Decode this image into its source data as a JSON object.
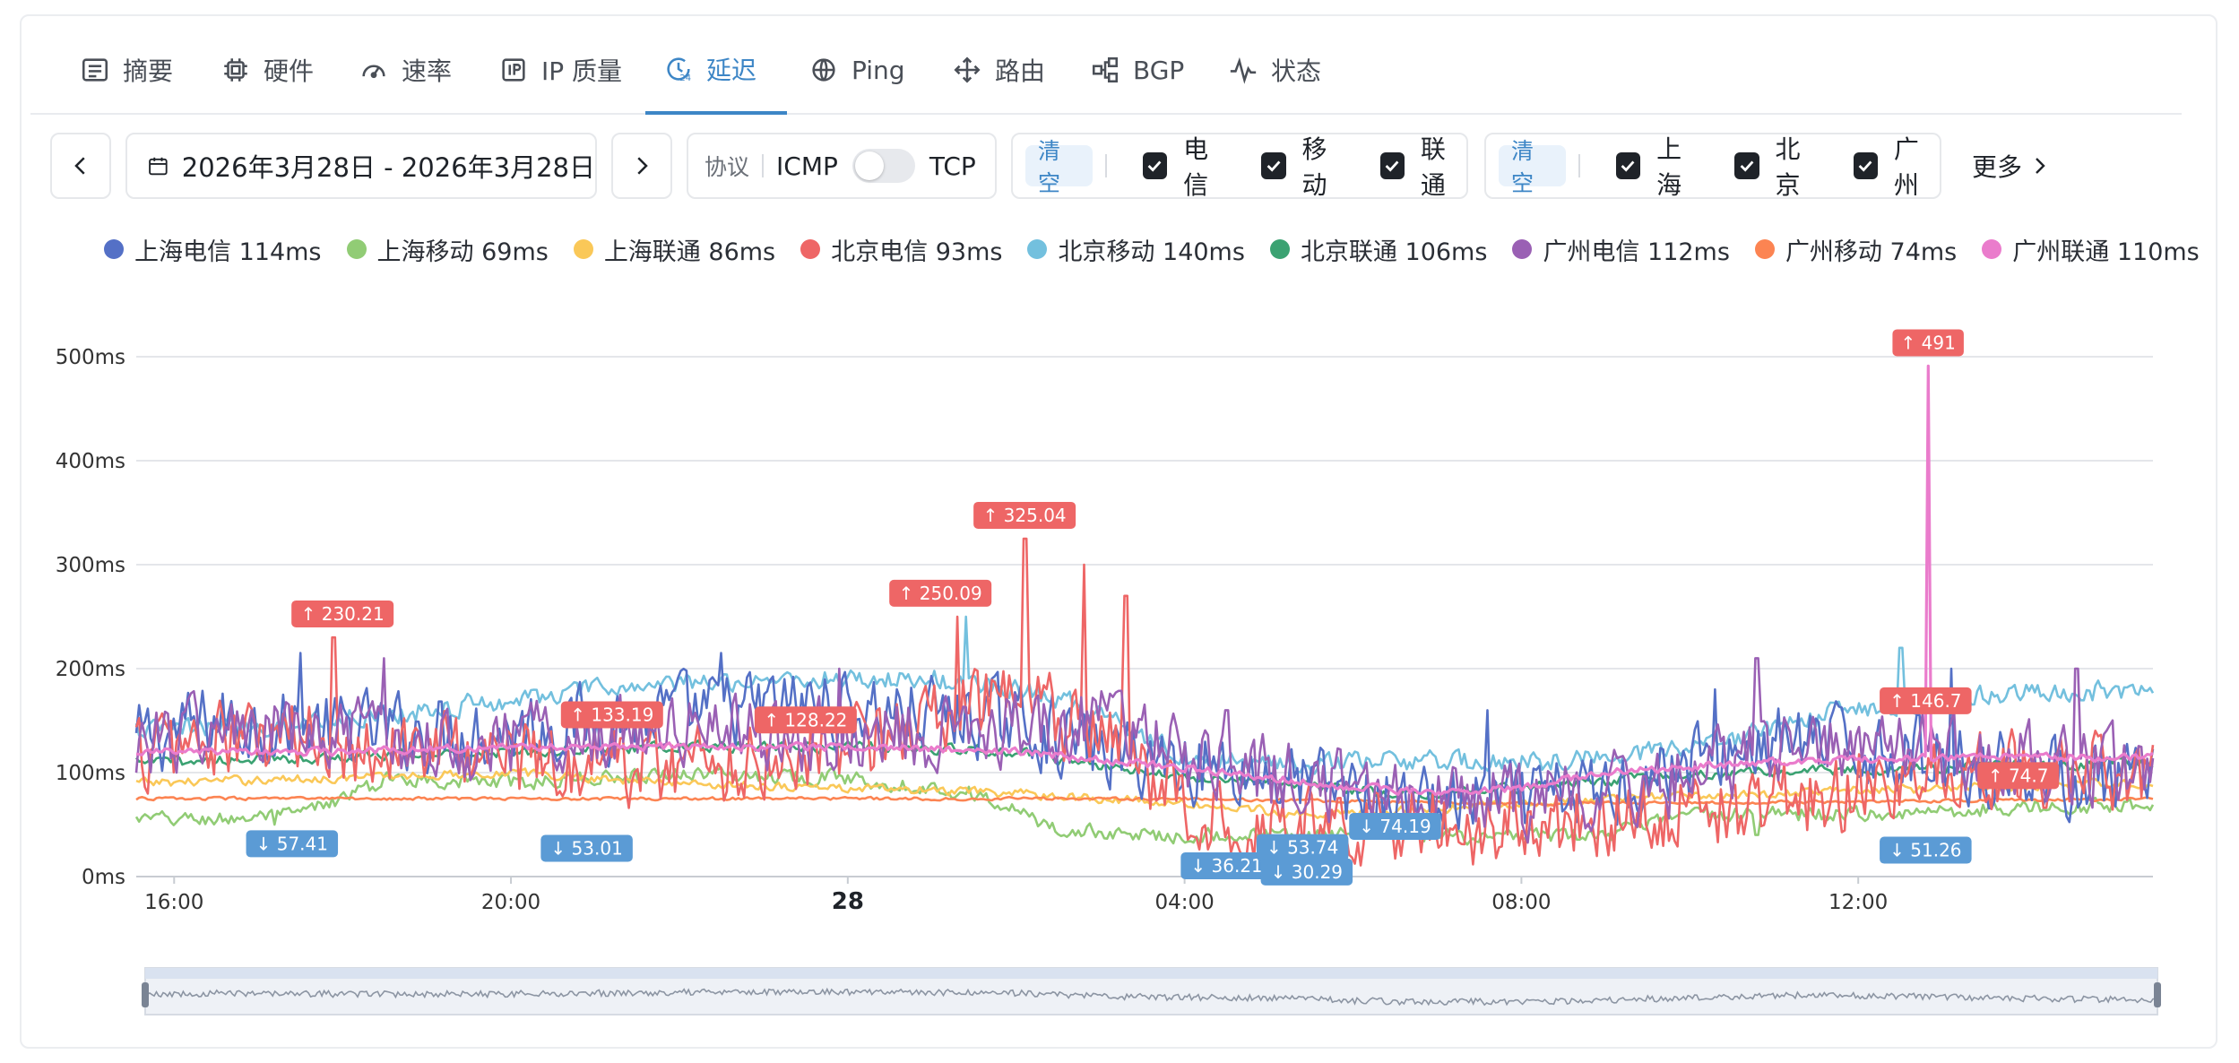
{
  "tabs": [
    {
      "label": "摘要",
      "icon": "summary-icon",
      "active": false
    },
    {
      "label": "硬件",
      "icon": "chip-icon",
      "active": false
    },
    {
      "label": "速率",
      "icon": "gauge-icon",
      "active": false
    },
    {
      "label": "IP 质量",
      "icon": "ip-icon",
      "active": false
    },
    {
      "label": "延迟",
      "icon": "clock-24-icon",
      "active": true
    },
    {
      "label": "Ping",
      "icon": "globe-icon",
      "active": false
    },
    {
      "label": "路由",
      "icon": "route-icon",
      "active": false
    },
    {
      "label": "BGP",
      "icon": "bgp-icon",
      "active": false
    },
    {
      "label": "状态",
      "icon": "pulse-icon",
      "active": false
    }
  ],
  "toolbar": {
    "date_range": "2026年3月28日 - 2026年3月28日",
    "protocol_label": "协议",
    "protocol_left": "ICMP",
    "protocol_right": "TCP",
    "toggle_on": false,
    "isp_clear": "清空",
    "isps": [
      {
        "label": "电信",
        "checked": true
      },
      {
        "label": "移动",
        "checked": true
      },
      {
        "label": "联通",
        "checked": true
      }
    ],
    "city_clear": "清空",
    "cities": [
      {
        "label": "上海",
        "checked": true
      },
      {
        "label": "北京",
        "checked": true
      },
      {
        "label": "广州",
        "checked": true
      }
    ],
    "more_label": "更多"
  },
  "legend": [
    {
      "label": "上海电信 114ms",
      "color": "#5470c6"
    },
    {
      "label": "上海移动 69ms",
      "color": "#91cc75"
    },
    {
      "label": "上海联通 86ms",
      "color": "#fac858"
    },
    {
      "label": "北京电信 93ms",
      "color": "#ee6666"
    },
    {
      "label": "北京移动 140ms",
      "color": "#73c0de"
    },
    {
      "label": "北京联通 106ms",
      "color": "#3ba272"
    },
    {
      "label": "广州电信 112ms",
      "color": "#9a60b4"
    },
    {
      "label": "广州移动 74ms",
      "color": "#fc8452"
    },
    {
      "label": "广州联通 110ms",
      "color": "#ea7ccc"
    }
  ],
  "chart_data": {
    "type": "line",
    "y_axis": {
      "min": 0,
      "max": 500,
      "ticks": [
        "0ms",
        "100ms",
        "200ms",
        "300ms",
        "400ms",
        "500ms"
      ]
    },
    "x_axis": {
      "ticks": [
        "16:00",
        "20:00",
        "28",
        "04:00",
        "08:00",
        "12:00"
      ],
      "bold_tick": "28",
      "start_hour": 15.55,
      "end_hour": 39.5
    },
    "grid": true,
    "legend_position": "top",
    "series": [
      {
        "name": "上海电信 114ms",
        "color": "#5470c6",
        "keys": [
          [
            15.55,
            130
          ],
          [
            16.5,
            150
          ],
          [
            18,
            140
          ],
          [
            19.5,
            140
          ],
          [
            21,
            150
          ],
          [
            23.5,
            165
          ],
          [
            26,
            150
          ],
          [
            27,
            120
          ],
          [
            28.5,
            105
          ],
          [
            29.5,
            90
          ],
          [
            30.5,
            70
          ],
          [
            32,
            70
          ],
          [
            33,
            85
          ],
          [
            34,
            110
          ],
          [
            35,
            130
          ],
          [
            36.5,
            120
          ],
          [
            38,
            100
          ],
          [
            39.5,
            85
          ]
        ],
        "amp": 50,
        "spikes": [
          [
            17.5,
            215
          ],
          [
            22.5,
            215
          ],
          [
            31.6,
            160
          ],
          [
            34.3,
            180
          ],
          [
            37.1,
            200
          ]
        ]
      },
      {
        "name": "上海移动 69ms",
        "color": "#91cc75",
        "keys": [
          [
            15.55,
            55
          ],
          [
            16.5,
            55
          ],
          [
            17.5,
            60
          ],
          [
            18.6,
            95
          ],
          [
            20,
            90
          ],
          [
            22,
            100
          ],
          [
            24,
            95
          ],
          [
            25.5,
            80
          ],
          [
            26.5,
            45
          ],
          [
            27.5,
            40
          ],
          [
            30,
            40
          ],
          [
            32,
            38
          ],
          [
            33,
            40
          ],
          [
            34,
            60
          ],
          [
            36,
            60
          ],
          [
            37.5,
            65
          ],
          [
            39.5,
            70
          ]
        ],
        "amp": 10,
        "spikes": [
          [
            17.2,
            50
          ],
          [
            34.8,
            40
          ]
        ]
      },
      {
        "name": "上海联通 86ms",
        "color": "#fac858",
        "keys": [
          [
            15.55,
            90
          ],
          [
            18,
            95
          ],
          [
            20,
            100
          ],
          [
            22,
            90
          ],
          [
            24,
            85
          ],
          [
            26,
            80
          ],
          [
            28,
            70
          ],
          [
            29.5,
            60
          ],
          [
            31,
            65
          ],
          [
            33,
            75
          ],
          [
            35,
            80
          ],
          [
            37,
            85
          ],
          [
            39.5,
            90
          ]
        ],
        "amp": 6,
        "spikes": [
          [
            30.3,
            45
          ]
        ]
      },
      {
        "name": "北京电信 93ms",
        "color": "#ee6666",
        "keys": [
          [
            15.55,
            120
          ],
          [
            16.5,
            130
          ],
          [
            18,
            130
          ],
          [
            19.5,
            120
          ],
          [
            21,
            110
          ],
          [
            22.5,
            110
          ],
          [
            24,
            130
          ],
          [
            25,
            150
          ],
          [
            25.8,
            170
          ],
          [
            26.5,
            150
          ],
          [
            27.5,
            110
          ],
          [
            28,
            60
          ],
          [
            30,
            50
          ],
          [
            31.5,
            50
          ],
          [
            33,
            60
          ],
          [
            34.5,
            70
          ],
          [
            36,
            85
          ],
          [
            37.5,
            95
          ],
          [
            39.5,
            100
          ]
        ],
        "amp": 55,
        "spikes": [
          [
            17.9,
            230
          ],
          [
            21.3,
            133
          ],
          [
            23.6,
            128
          ],
          [
            25.3,
            250
          ],
          [
            26.1,
            325
          ],
          [
            26.8,
            300
          ],
          [
            27.3,
            270
          ]
        ]
      },
      {
        "name": "北京移动 140ms",
        "color": "#73c0de",
        "keys": [
          [
            15.55,
            140
          ],
          [
            17,
            145
          ],
          [
            19,
            160
          ],
          [
            21,
            180
          ],
          [
            23,
            190
          ],
          [
            25,
            190
          ],
          [
            26,
            180
          ],
          [
            27,
            160
          ],
          [
            28,
            115
          ],
          [
            29,
            110
          ],
          [
            32,
            110
          ],
          [
            33,
            115
          ],
          [
            34.5,
            130
          ],
          [
            35.5,
            155
          ],
          [
            37,
            170
          ],
          [
            38.5,
            180
          ],
          [
            39.5,
            175
          ]
        ],
        "amp": 14,
        "spikes": [
          [
            25.4,
            250
          ],
          [
            36.5,
            220
          ]
        ]
      },
      {
        "name": "北京联通 106ms",
        "color": "#3ba272",
        "keys": [
          [
            15.55,
            110
          ],
          [
            18,
            115
          ],
          [
            20,
            120
          ],
          [
            22,
            125
          ],
          [
            24,
            125
          ],
          [
            26,
            120
          ],
          [
            27.5,
            100
          ],
          [
            29,
            90
          ],
          [
            30.5,
            80
          ],
          [
            32,
            85
          ],
          [
            33.5,
            95
          ],
          [
            35,
            100
          ],
          [
            37,
            105
          ],
          [
            39.5,
            110
          ]
        ],
        "amp": 7,
        "spikes": []
      },
      {
        "name": "广州电信 112ms",
        "color": "#9a60b4",
        "keys": [
          [
            15.55,
            130
          ],
          [
            16.5,
            140
          ],
          [
            18,
            130
          ],
          [
            19.5,
            130
          ],
          [
            21,
            140
          ],
          [
            23,
            140
          ],
          [
            25,
            140
          ],
          [
            26.5,
            150
          ],
          [
            27.5,
            145
          ],
          [
            28,
            110
          ],
          [
            29.5,
            90
          ],
          [
            31,
            75
          ],
          [
            32,
            70
          ],
          [
            33,
            80
          ],
          [
            34,
            100
          ],
          [
            35,
            120
          ],
          [
            36.5,
            120
          ],
          [
            38,
            110
          ],
          [
            39.5,
            105
          ]
        ],
        "amp": 50,
        "spikes": [
          [
            18.5,
            210
          ],
          [
            23.9,
            200
          ],
          [
            28.5,
            160
          ],
          [
            34.8,
            210
          ],
          [
            38.6,
            200
          ]
        ]
      },
      {
        "name": "广州移动 74ms",
        "color": "#fc8452",
        "keys": [
          [
            15.55,
            75
          ],
          [
            20,
            75
          ],
          [
            24,
            75
          ],
          [
            28,
            75
          ],
          [
            32,
            70
          ],
          [
            36,
            72
          ],
          [
            39.5,
            75
          ]
        ],
        "amp": 2,
        "spikes": []
      },
      {
        "name": "广州联通 110ms",
        "color": "#ea7ccc",
        "keys": [
          [
            15.55,
            120
          ],
          [
            18,
            120
          ],
          [
            20,
            125
          ],
          [
            22,
            125
          ],
          [
            24,
            125
          ],
          [
            26,
            120
          ],
          [
            28,
            105
          ],
          [
            29.5,
            90
          ],
          [
            31,
            80
          ],
          [
            32,
            85
          ],
          [
            33,
            100
          ],
          [
            35,
            110
          ],
          [
            37,
            115
          ],
          [
            39.5,
            115
          ]
        ],
        "amp": 5,
        "spikes": [
          [
            36.83,
            491
          ]
        ]
      }
    ],
    "markers": [
      {
        "kind": "max",
        "label": "↑ 230.21",
        "x": 18.0,
        "y": 230.21
      },
      {
        "kind": "max",
        "label": "↑ 133.19",
        "x": 21.2,
        "y": 133.19
      },
      {
        "kind": "max",
        "label": "↑ 128.22",
        "x": 23.5,
        "y": 128.22
      },
      {
        "kind": "max",
        "label": "↑ 250.09",
        "x": 25.1,
        "y": 250.09
      },
      {
        "kind": "max",
        "label": "↑ 325.04",
        "x": 26.1,
        "y": 325.04
      },
      {
        "kind": "max",
        "label": "↑ 491",
        "x": 36.83,
        "y": 491
      },
      {
        "kind": "max",
        "label": "↑ 146.7",
        "x": 36.8,
        "y": 146.7
      },
      {
        "kind": "max",
        "label": "↑ 74.7",
        "x": 37.9,
        "y": 74.7
      },
      {
        "kind": "min",
        "label": "↓ 57.41",
        "x": 17.4,
        "y": 57.41
      },
      {
        "kind": "min",
        "label": "↓ 53.01",
        "x": 20.9,
        "y": 53.01
      },
      {
        "kind": "min",
        "label": "↓ 36.21",
        "x": 28.5,
        "y": 36.21
      },
      {
        "kind": "min",
        "label": "↓ 53.74",
        "x": 29.4,
        "y": 53.74
      },
      {
        "kind": "min",
        "label": "↓ 30.29",
        "x": 29.45,
        "y": 30.29
      },
      {
        "kind": "min",
        "label": "↓ 74.19",
        "x": 30.5,
        "y": 74.19
      },
      {
        "kind": "min",
        "label": "↓ 51.26",
        "x": 36.8,
        "y": 51.26
      }
    ]
  }
}
